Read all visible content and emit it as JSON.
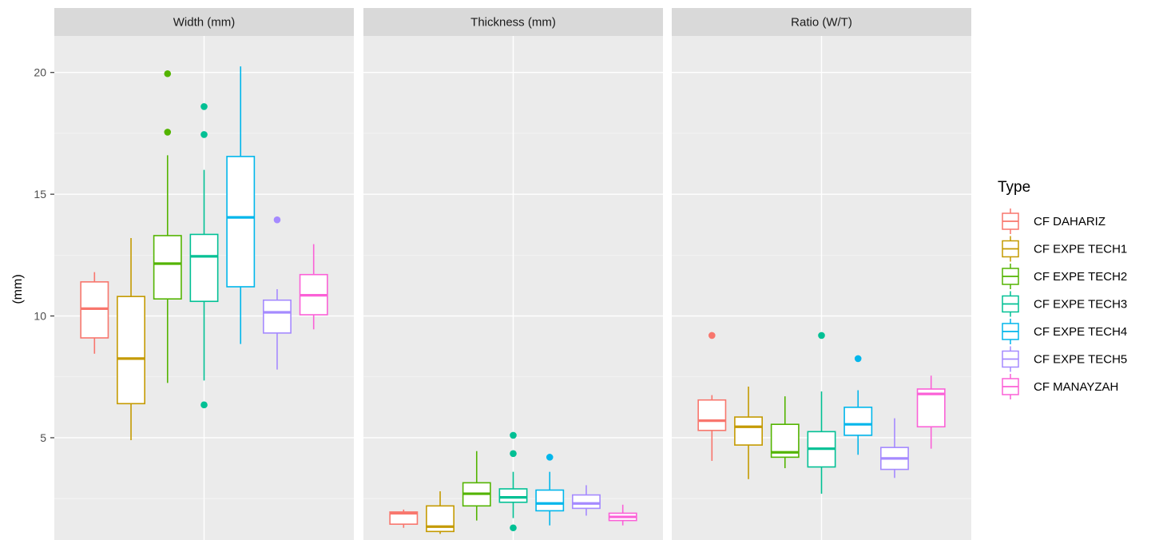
{
  "chart_data": {
    "type": "boxplot",
    "ylabel": "(mm)",
    "ylim": [
      0.8,
      21.5
    ],
    "yticks": [
      5,
      10,
      15,
      20
    ],
    "grid": true,
    "legend": {
      "title": "Type",
      "placement": "right",
      "entries": [
        "CF DAHARIZ",
        "CF EXPE TECH1",
        "CF EXPE TECH2",
        "CF EXPE TECH3",
        "CF EXPE TECH4",
        "CF EXPE TECH5",
        "CF MANAYZAH"
      ]
    },
    "colors": [
      "#F8766D",
      "#C49A00",
      "#53B400",
      "#00C094",
      "#00B6EB",
      "#A58AFF",
      "#FB61D7"
    ],
    "panels": [
      {
        "title": "Width (mm)",
        "boxes": [
          {
            "type": "CF DAHARIZ",
            "whisker_low": 8.45,
            "q1": 9.1,
            "median": 10.3,
            "q3": 11.4,
            "whisker_high": 11.8,
            "outliers": []
          },
          {
            "type": "CF EXPE TECH1",
            "whisker_low": 4.9,
            "q1": 6.4,
            "median": 8.25,
            "q3": 10.8,
            "whisker_high": 13.2,
            "outliers": []
          },
          {
            "type": "CF EXPE TECH2",
            "whisker_low": 7.25,
            "q1": 10.7,
            "median": 12.15,
            "q3": 13.3,
            "whisker_high": 16.6,
            "outliers": [
              17.55,
              19.95
            ]
          },
          {
            "type": "CF EXPE TECH3",
            "whisker_low": 7.35,
            "q1": 10.6,
            "median": 12.45,
            "q3": 13.35,
            "whisker_high": 16.0,
            "outliers": [
              6.35,
              17.45,
              18.6
            ]
          },
          {
            "type": "CF EXPE TECH4",
            "whisker_low": 8.85,
            "q1": 11.2,
            "median": 14.05,
            "q3": 16.55,
            "whisker_high": 20.25,
            "outliers": []
          },
          {
            "type": "CF EXPE TECH5",
            "whisker_low": 7.8,
            "q1": 9.3,
            "median": 10.15,
            "q3": 10.65,
            "whisker_high": 11.1,
            "outliers": [
              13.95
            ]
          },
          {
            "type": "CF MANAYZAH",
            "whisker_low": 9.45,
            "q1": 10.05,
            "median": 10.85,
            "q3": 11.7,
            "whisker_high": 12.95,
            "outliers": []
          }
        ]
      },
      {
        "title": "Thickness (mm)",
        "boxes": [
          {
            "type": "CF DAHARIZ",
            "whisker_low": 1.3,
            "q1": 1.45,
            "median": 1.9,
            "q3": 1.95,
            "whisker_high": 2.05,
            "outliers": []
          },
          {
            "type": "CF EXPE TECH1",
            "whisker_low": 1.05,
            "q1": 1.15,
            "median": 1.35,
            "q3": 2.2,
            "whisker_high": 2.8,
            "outliers": []
          },
          {
            "type": "CF EXPE TECH2",
            "whisker_low": 1.6,
            "q1": 2.2,
            "median": 2.7,
            "q3": 3.15,
            "whisker_high": 4.45,
            "outliers": []
          },
          {
            "type": "CF EXPE TECH3",
            "whisker_low": 1.7,
            "q1": 2.35,
            "median": 2.55,
            "q3": 2.9,
            "whisker_high": 3.6,
            "outliers": [
              1.3,
              4.35,
              5.1
            ]
          },
          {
            "type": "CF EXPE TECH4",
            "whisker_low": 1.4,
            "q1": 2.0,
            "median": 2.3,
            "q3": 2.85,
            "whisker_high": 3.6,
            "outliers": [
              4.2
            ]
          },
          {
            "type": "CF EXPE TECH5",
            "whisker_low": 1.8,
            "q1": 2.1,
            "median": 2.3,
            "q3": 2.65,
            "whisker_high": 3.05,
            "outliers": []
          },
          {
            "type": "CF MANAYZAH",
            "whisker_low": 1.4,
            "q1": 1.6,
            "median": 1.75,
            "q3": 1.9,
            "whisker_high": 2.25,
            "outliers": []
          }
        ]
      },
      {
        "title": "Ratio (W/T)",
        "boxes": [
          {
            "type": "CF DAHARIZ",
            "whisker_low": 4.05,
            "q1": 5.3,
            "median": 5.7,
            "q3": 6.55,
            "whisker_high": 6.75,
            "outliers": [
              9.2
            ]
          },
          {
            "type": "CF EXPE TECH1",
            "whisker_low": 3.3,
            "q1": 4.7,
            "median": 5.45,
            "q3": 5.85,
            "whisker_high": 7.1,
            "outliers": []
          },
          {
            "type": "CF EXPE TECH2",
            "whisker_low": 3.75,
            "q1": 4.2,
            "median": 4.4,
            "q3": 5.55,
            "whisker_high": 6.7,
            "outliers": []
          },
          {
            "type": "CF EXPE TECH3",
            "whisker_low": 2.7,
            "q1": 3.8,
            "median": 4.55,
            "q3": 5.25,
            "whisker_high": 6.9,
            "outliers": [
              9.2
            ]
          },
          {
            "type": "CF EXPE TECH4",
            "whisker_low": 4.3,
            "q1": 5.1,
            "median": 5.55,
            "q3": 6.25,
            "whisker_high": 6.95,
            "outliers": [
              8.25
            ]
          },
          {
            "type": "CF EXPE TECH5",
            "whisker_low": 3.35,
            "q1": 3.7,
            "median": 4.15,
            "q3": 4.6,
            "whisker_high": 5.8,
            "outliers": []
          },
          {
            "type": "CF MANAYZAH",
            "whisker_low": 4.55,
            "q1": 5.45,
            "median": 6.8,
            "q3": 7.0,
            "whisker_high": 7.55,
            "outliers": []
          }
        ]
      }
    ]
  }
}
